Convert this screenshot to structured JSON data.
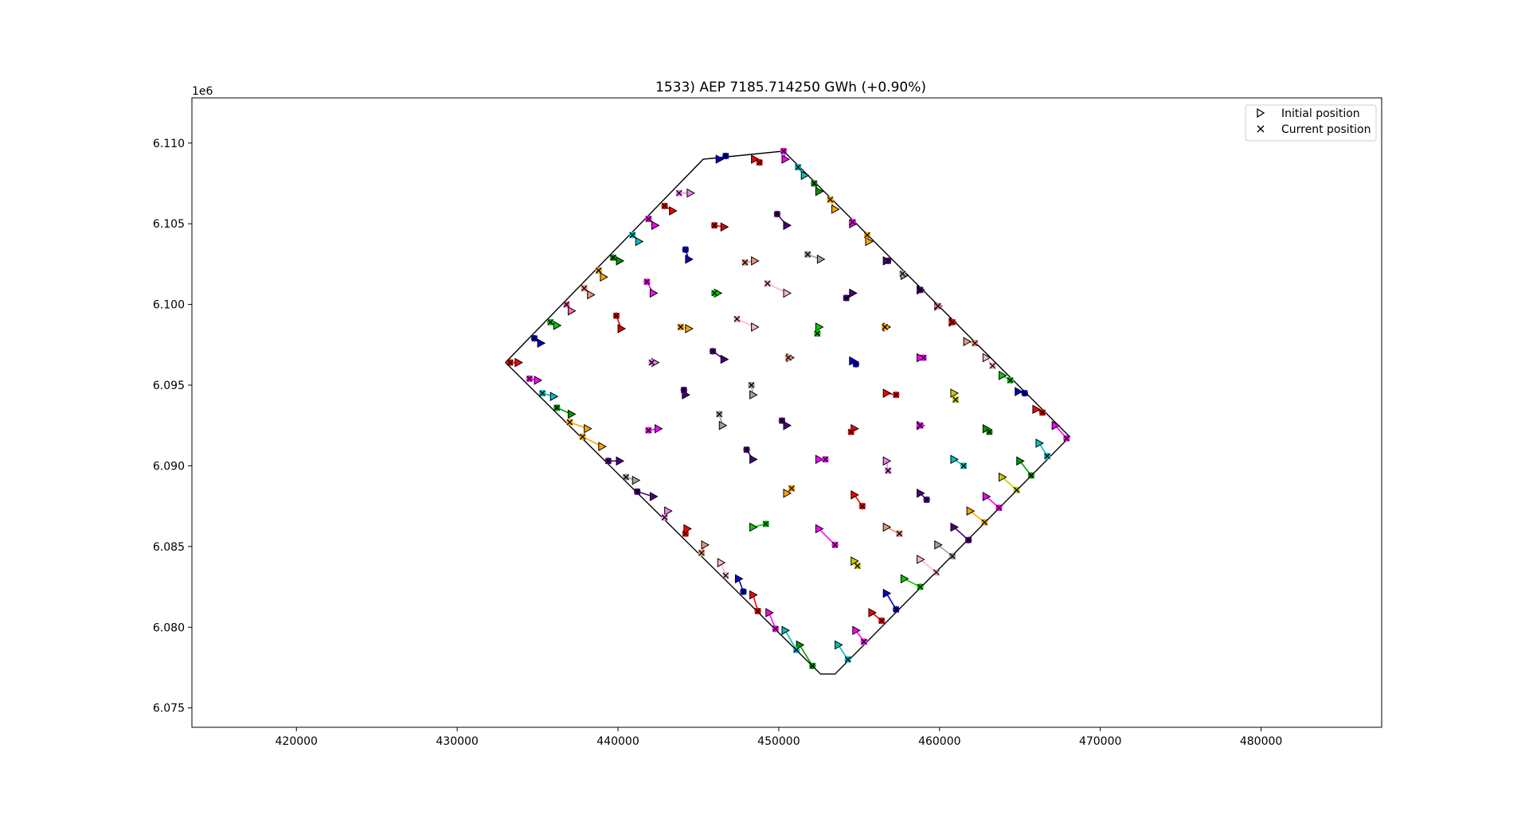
{
  "chart_data": {
    "type": "scatter",
    "title": "1533) AEP 7185.714250 GWh (+0.90%)",
    "xlabel": "",
    "ylabel": "",
    "xlim": [
      413500,
      487500
    ],
    "ylim": [
      6073800,
      6112800
    ],
    "y_offset_text": "1e6",
    "xticks": [
      420000,
      430000,
      440000,
      450000,
      460000,
      470000,
      480000
    ],
    "xtick_labels": [
      "420000",
      "430000",
      "440000",
      "450000",
      "460000",
      "470000",
      "480000"
    ],
    "yticks": [
      6075000,
      6080000,
      6085000,
      6090000,
      6095000,
      6100000,
      6105000,
      6110000
    ],
    "ytick_labels": [
      "6.075",
      "6.080",
      "6.085",
      "6.090",
      "6.095",
      "6.100",
      "6.105",
      "6.110"
    ],
    "grid": false,
    "legend": {
      "placement": "top-right",
      "entries": [
        {
          "label": "Initial position",
          "marker": "triangle-right"
        },
        {
          "label": "Current position",
          "marker": "x"
        }
      ]
    },
    "boundary": [
      [
        433000,
        6096400
      ],
      [
        445300,
        6109000
      ],
      [
        450300,
        6109500
      ],
      [
        468100,
        6091800
      ],
      [
        453500,
        6077100
      ],
      [
        452600,
        6077100
      ],
      [
        433000,
        6096400
      ]
    ],
    "colors": [
      "#ff0000",
      "#0000cd",
      "#00cc00",
      "#ff00ff",
      "#ffa500",
      "#4b0082",
      "#00bfbf",
      "#9acd32",
      "#a0a0a0",
      "#ffb6c1",
      "#e9967a",
      "#ff69b4"
    ],
    "turbines": [
      {
        "initial": [
          433800,
          6096400
        ],
        "current": [
          433300,
          6096400
        ],
        "color": "#ff0000"
      },
      {
        "initial": [
          435200,
          6097600
        ],
        "current": [
          434800,
          6097900
        ],
        "color": "#0000cd"
      },
      {
        "initial": [
          436200,
          6098700
        ],
        "current": [
          435800,
          6098900
        ],
        "color": "#00cc00"
      },
      {
        "initial": [
          437100,
          6099600
        ],
        "current": [
          436800,
          6100000
        ],
        "color": "#ff69b4"
      },
      {
        "initial": [
          438300,
          6100600
        ],
        "current": [
          437900,
          6101000
        ],
        "color": "#e9967a"
      },
      {
        "initial": [
          439100,
          6101700
        ],
        "current": [
          438800,
          6102100
        ],
        "color": "#ffa500"
      },
      {
        "initial": [
          440100,
          6102700
        ],
        "current": [
          439700,
          6102900
        ],
        "color": "#009900"
      },
      {
        "initial": [
          441300,
          6103900
        ],
        "current": [
          440900,
          6104300
        ],
        "color": "#00bfbf"
      },
      {
        "initial": [
          442300,
          6104900
        ],
        "current": [
          441900,
          6105300
        ],
        "color": "#ff00ff"
      },
      {
        "initial": [
          443400,
          6105800
        ],
        "current": [
          442900,
          6106100
        ],
        "color": "#ff0000"
      },
      {
        "initial": [
          444500,
          6106900
        ],
        "current": [
          443800,
          6106900
        ],
        "color": "#ee82ee"
      },
      {
        "initial": [
          446300,
          6109000
        ],
        "current": [
          446700,
          6109200
        ],
        "color": "#0000cd"
      },
      {
        "initial": [
          448500,
          6109000
        ],
        "current": [
          448800,
          6108800
        ],
        "color": "#ff0000"
      },
      {
        "initial": [
          450400,
          6109000
        ],
        "current": [
          450300,
          6109500
        ],
        "color": "#ff00ff"
      },
      {
        "initial": [
          451600,
          6108000
        ],
        "current": [
          451200,
          6108500
        ],
        "color": "#00bfbf"
      },
      {
        "initial": [
          452500,
          6107000
        ],
        "current": [
          452200,
          6107500
        ],
        "color": "#009900"
      },
      {
        "initial": [
          453500,
          6105900
        ],
        "current": [
          453200,
          6106500
        ],
        "color": "#ffa500"
      },
      {
        "initial": [
          454600,
          6105000
        ],
        "current": [
          454600,
          6105100
        ],
        "color": "#ff00ff"
      },
      {
        "initial": [
          455600,
          6103900
        ],
        "current": [
          455500,
          6104300
        ],
        "color": "#ffa500"
      },
      {
        "initial": [
          456700,
          6102700
        ],
        "current": [
          456800,
          6102700
        ],
        "color": "#4b0082"
      },
      {
        "initial": [
          457800,
          6101800
        ],
        "current": [
          457700,
          6101900
        ],
        "color": "#a0a0a0"
      },
      {
        "initial": [
          458800,
          6100900
        ],
        "current": [
          458800,
          6100900
        ],
        "color": "#4b0082"
      },
      {
        "initial": [
          459900,
          6099900
        ],
        "current": [
          459900,
          6099900
        ],
        "color": "#ff69b4"
      },
      {
        "initial": [
          460800,
          6098900
        ],
        "current": [
          460800,
          6098900
        ],
        "color": "#ff0000"
      },
      {
        "initial": [
          461700,
          6097700
        ],
        "current": [
          462200,
          6097600
        ],
        "color": "#e9967a"
      },
      {
        "initial": [
          462900,
          6096700
        ],
        "current": [
          463300,
          6096200
        ],
        "color": "#ffb6c1"
      },
      {
        "initial": [
          463900,
          6095600
        ],
        "current": [
          464400,
          6095300
        ],
        "color": "#00cc00"
      },
      {
        "initial": [
          464900,
          6094600
        ],
        "current": [
          465300,
          6094500
        ],
        "color": "#0000cd"
      },
      {
        "initial": [
          466000,
          6093500
        ],
        "current": [
          466400,
          6093300
        ],
        "color": "#ff0000"
      },
      {
        "initial": [
          467200,
          6092500
        ],
        "current": [
          467900,
          6091700
        ],
        "color": "#ff00ff"
      },
      {
        "initial": [
          466200,
          6091400
        ],
        "current": [
          466700,
          6090600
        ],
        "color": "#00bfbf"
      },
      {
        "initial": [
          465000,
          6090300
        ],
        "current": [
          465700,
          6089400
        ],
        "color": "#009900"
      },
      {
        "initial": [
          463900,
          6089300
        ],
        "current": [
          464800,
          6088500
        ],
        "color": "#cccc00"
      },
      {
        "initial": [
          462900,
          6088100
        ],
        "current": [
          463700,
          6087400
        ],
        "color": "#ff00ff"
      },
      {
        "initial": [
          461900,
          6087200
        ],
        "current": [
          462800,
          6086500
        ],
        "color": "#ffa500"
      },
      {
        "initial": [
          460900,
          6086200
        ],
        "current": [
          461800,
          6085400
        ],
        "color": "#4b0082"
      },
      {
        "initial": [
          459900,
          6085100
        ],
        "current": [
          460800,
          6084400
        ],
        "color": "#a0a0a0"
      },
      {
        "initial": [
          458800,
          6084200
        ],
        "current": [
          459800,
          6083400
        ],
        "color": "#ffb6c1"
      },
      {
        "initial": [
          457800,
          6083000
        ],
        "current": [
          458800,
          6082500
        ],
        "color": "#00cc00"
      },
      {
        "initial": [
          456700,
          6082100
        ],
        "current": [
          457300,
          6081100
        ],
        "color": "#0000cd"
      },
      {
        "initial": [
          455800,
          6080900
        ],
        "current": [
          456400,
          6080400
        ],
        "color": "#ff0000"
      },
      {
        "initial": [
          454800,
          6079800
        ],
        "current": [
          455300,
          6079100
        ],
        "color": "#ff00ff"
      },
      {
        "initial": [
          453700,
          6078900
        ],
        "current": [
          454300,
          6078000
        ],
        "color": "#00bfbf"
      },
      {
        "initial": [
          451300,
          6078900
        ],
        "current": [
          452100,
          6077600
        ],
        "color": "#009900"
      },
      {
        "initial": [
          450400,
          6079800
        ],
        "current": [
          451100,
          6078600
        ],
        "color": "#00bfbf"
      },
      {
        "initial": [
          449400,
          6080900
        ],
        "current": [
          449800,
          6079900
        ],
        "color": "#ff00ff"
      },
      {
        "initial": [
          448400,
          6082000
        ],
        "current": [
          448700,
          6081000
        ],
        "color": "#ff0000"
      },
      {
        "initial": [
          447500,
          6083000
        ],
        "current": [
          447800,
          6082200
        ],
        "color": "#0000cd"
      },
      {
        "initial": [
          446400,
          6084000
        ],
        "current": [
          446700,
          6083200
        ],
        "color": "#ffb6c1"
      },
      {
        "initial": [
          445400,
          6085100
        ],
        "current": [
          445200,
          6084600
        ],
        "color": "#e9967a"
      },
      {
        "initial": [
          444300,
          6086100
        ],
        "current": [
          444200,
          6085800
        ],
        "color": "#ff0000"
      },
      {
        "initial": [
          443100,
          6087200
        ],
        "current": [
          442900,
          6086800
        ],
        "color": "#ee82ee"
      },
      {
        "initial": [
          442200,
          6088100
        ],
        "current": [
          441200,
          6088400
        ],
        "color": "#4b0082"
      },
      {
        "initial": [
          441100,
          6089100
        ],
        "current": [
          440500,
          6089300
        ],
        "color": "#a0a0a0"
      },
      {
        "initial": [
          440100,
          6090300
        ],
        "current": [
          439400,
          6090300
        ],
        "color": "#4b0082"
      },
      {
        "initial": [
          439000,
          6091200
        ],
        "current": [
          437800,
          6091800
        ],
        "color": "#ffa500"
      },
      {
        "initial": [
          438100,
          6092300
        ],
        "current": [
          437000,
          6092700
        ],
        "color": "#ffa500"
      },
      {
        "initial": [
          437100,
          6093200
        ],
        "current": [
          436200,
          6093600
        ],
        "color": "#009900"
      },
      {
        "initial": [
          436000,
          6094300
        ],
        "current": [
          435300,
          6094500
        ],
        "color": "#00bfbf"
      },
      {
        "initial": [
          435000,
          6095300
        ],
        "current": [
          434500,
          6095400
        ],
        "color": "#ff00ff"
      },
      {
        "initial": [
          442200,
          6100700
        ],
        "current": [
          441800,
          6101400
        ],
        "color": "#ff00ff"
      },
      {
        "initial": [
          440200,
          6098500
        ],
        "current": [
          439900,
          6099300
        ],
        "color": "#e00000"
      },
      {
        "initial": [
          442300,
          6096400
        ],
        "current": [
          442100,
          6096400
        ],
        "color": "#ee82ee"
      },
      {
        "initial": [
          444200,
          6094400
        ],
        "current": [
          444100,
          6094700
        ],
        "color": "#4b0082"
      },
      {
        "initial": [
          442500,
          6092300
        ],
        "current": [
          441900,
          6092200
        ],
        "color": "#ff00ff"
      },
      {
        "initial": [
          444400,
          6102800
        ],
        "current": [
          444200,
          6103400
        ],
        "color": "#0000cd"
      },
      {
        "initial": [
          444400,
          6098500
        ],
        "current": [
          443900,
          6098600
        ],
        "color": "#ffa500"
      },
      {
        "initial": [
          446600,
          6104800
        ],
        "current": [
          446000,
          6104900
        ],
        "color": "#e00000"
      },
      {
        "initial": [
          446200,
          6100700
        ],
        "current": [
          446000,
          6100700
        ],
        "color": "#00cc00"
      },
      {
        "initial": [
          446600,
          6096600
        ],
        "current": [
          445900,
          6097100
        ],
        "color": "#4b0082"
      },
      {
        "initial": [
          446500,
          6092500
        ],
        "current": [
          446300,
          6093200
        ],
        "color": "#a0a0a0"
      },
      {
        "initial": [
          448500,
          6102700
        ],
        "current": [
          447900,
          6102600
        ],
        "color": "#e9967a"
      },
      {
        "initial": [
          448500,
          6098600
        ],
        "current": [
          447400,
          6099100
        ],
        "color": "#ffb6c1"
      },
      {
        "initial": [
          448400,
          6094400
        ],
        "current": [
          448300,
          6095000
        ],
        "color": "#a0a0a0"
      },
      {
        "initial": [
          448400,
          6090400
        ],
        "current": [
          448000,
          6091000
        ],
        "color": "#4b0082"
      },
      {
        "initial": [
          448400,
          6086200
        ],
        "current": [
          449200,
          6086400
        ],
        "color": "#00cc00"
      },
      {
        "initial": [
          450500,
          6104900
        ],
        "current": [
          449900,
          6105600
        ],
        "color": "#4b0082"
      },
      {
        "initial": [
          450500,
          6100700
        ],
        "current": [
          449300,
          6101300
        ],
        "color": "#ffb6c1"
      },
      {
        "initial": [
          450700,
          6096700
        ],
        "current": [
          450600,
          6096700
        ],
        "color": "#e9967a"
      },
      {
        "initial": [
          450500,
          6092500
        ],
        "current": [
          450200,
          6092800
        ],
        "color": "#4b0082"
      },
      {
        "initial": [
          450500,
          6088300
        ],
        "current": [
          450800,
          6088600
        ],
        "color": "#ffa500"
      },
      {
        "initial": [
          452600,
          6102800
        ],
        "current": [
          451800,
          6103100
        ],
        "color": "#a0a0a0"
      },
      {
        "initial": [
          452500,
          6098600
        ],
        "current": [
          452400,
          6098200
        ],
        "color": "#00cc00"
      },
      {
        "initial": [
          452500,
          6090400
        ],
        "current": [
          452900,
          6090400
        ],
        "color": "#ff00ff"
      },
      {
        "initial": [
          452500,
          6086100
        ],
        "current": [
          453500,
          6085100
        ],
        "color": "#ff00ff"
      },
      {
        "initial": [
          454600,
          6100700
        ],
        "current": [
          454200,
          6100400
        ],
        "color": "#4b0082"
      },
      {
        "initial": [
          454600,
          6096500
        ],
        "current": [
          454800,
          6096300
        ],
        "color": "#0000cd"
      },
      {
        "initial": [
          454700,
          6092300
        ],
        "current": [
          454500,
          6092100
        ],
        "color": "#ff0000"
      },
      {
        "initial": [
          454700,
          6088200
        ],
        "current": [
          455200,
          6087500
        ],
        "color": "#ff0000"
      },
      {
        "initial": [
          454700,
          6084100
        ],
        "current": [
          454900,
          6083800
        ],
        "color": "#cccc00"
      },
      {
        "initial": [
          456700,
          6098600
        ],
        "current": [
          456600,
          6098600
        ],
        "color": "#ffa500"
      },
      {
        "initial": [
          456700,
          6094500
        ],
        "current": [
          457300,
          6094400
        ],
        "color": "#ff0000"
      },
      {
        "initial": [
          456700,
          6090300
        ],
        "current": [
          456800,
          6089700
        ],
        "color": "#ee82ee"
      },
      {
        "initial": [
          456700,
          6086200
        ],
        "current": [
          457500,
          6085800
        ],
        "color": "#e9967a"
      },
      {
        "initial": [
          458800,
          6096700
        ],
        "current": [
          459000,
          6096700
        ],
        "color": "#ff00ff"
      },
      {
        "initial": [
          458800,
          6092500
        ],
        "current": [
          458800,
          6092500
        ],
        "color": "#ff00ff"
      },
      {
        "initial": [
          458800,
          6088300
        ],
        "current": [
          459200,
          6087900
        ],
        "color": "#4b0082"
      },
      {
        "initial": [
          460900,
          6094500
        ],
        "current": [
          461000,
          6094100
        ],
        "color": "#cccc00"
      },
      {
        "initial": [
          460900,
          6090400
        ],
        "current": [
          461500,
          6090000
        ],
        "color": "#00bfbf"
      },
      {
        "initial": [
          462900,
          6092300
        ],
        "current": [
          463100,
          6092100
        ],
        "color": "#009900"
      }
    ]
  }
}
